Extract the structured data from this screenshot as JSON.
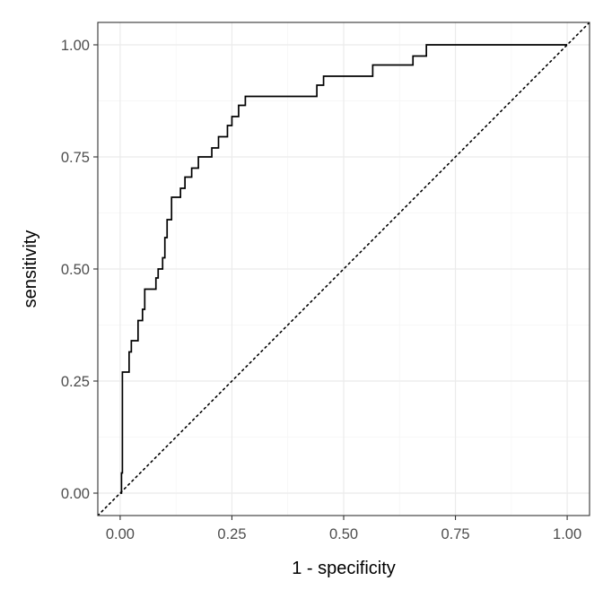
{
  "chart_data": {
    "type": "line",
    "title": "",
    "xlabel": "1 - specificity",
    "ylabel": "sensitivity",
    "xlim": [
      -0.05,
      1.05
    ],
    "ylim": [
      -0.05,
      1.05
    ],
    "x_ticks": [
      0,
      0.25,
      0.5,
      0.75,
      1
    ],
    "x_tick_labels": [
      "0.00",
      "0.25",
      "0.50",
      "0.75",
      "1.00"
    ],
    "y_ticks": [
      0,
      0.25,
      0.5,
      0.75,
      1
    ],
    "y_tick_labels": [
      "0.00",
      "0.25",
      "0.50",
      "0.75",
      "1.00"
    ],
    "grid": true,
    "theme": "bw",
    "colors": {
      "line": "#000000",
      "grid_major": "#ebebeb",
      "grid_minor": "#f5f5f5",
      "border": "#333333"
    },
    "series": [
      {
        "style": "step",
        "x": [
          0,
          0.003,
          0.003,
          0.005,
          0.005,
          0.02,
          0.02,
          0.025,
          0.025,
          0.04,
          0.04,
          0.05,
          0.05,
          0.055,
          0.055,
          0.08,
          0.08,
          0.085,
          0.085,
          0.095,
          0.095,
          0.1,
          0.1,
          0.105,
          0.105,
          0.115,
          0.115,
          0.135,
          0.135,
          0.145,
          0.145,
          0.16,
          0.16,
          0.175,
          0.175,
          0.205,
          0.205,
          0.22,
          0.22,
          0.24,
          0.24,
          0.25,
          0.25,
          0.265,
          0.265,
          0.28,
          0.28,
          0.44,
          0.44,
          0.455,
          0.455,
          0.565,
          0.565,
          0.655,
          0.655,
          0.685,
          0.685,
          0.78,
          0.78,
          1.0
        ],
        "y": [
          0,
          0,
          0.045,
          0.045,
          0.27,
          0.27,
          0.315,
          0.315,
          0.34,
          0.34,
          0.385,
          0.385,
          0.41,
          0.41,
          0.455,
          0.455,
          0.48,
          0.48,
          0.5,
          0.5,
          0.525,
          0.525,
          0.57,
          0.57,
          0.61,
          0.61,
          0.66,
          0.66,
          0.68,
          0.68,
          0.705,
          0.705,
          0.725,
          0.725,
          0.75,
          0.75,
          0.77,
          0.77,
          0.795,
          0.795,
          0.82,
          0.82,
          0.84,
          0.84,
          0.865,
          0.865,
          0.885,
          0.885,
          0.91,
          0.91,
          0.93,
          0.93,
          0.955,
          0.955,
          0.975,
          0.975,
          1.0,
          1.0,
          1.0,
          1.0
        ]
      },
      {
        "style": "dotted",
        "x": [
          -0.05,
          1.05
        ],
        "y": [
          -0.05,
          1.05
        ]
      }
    ]
  }
}
